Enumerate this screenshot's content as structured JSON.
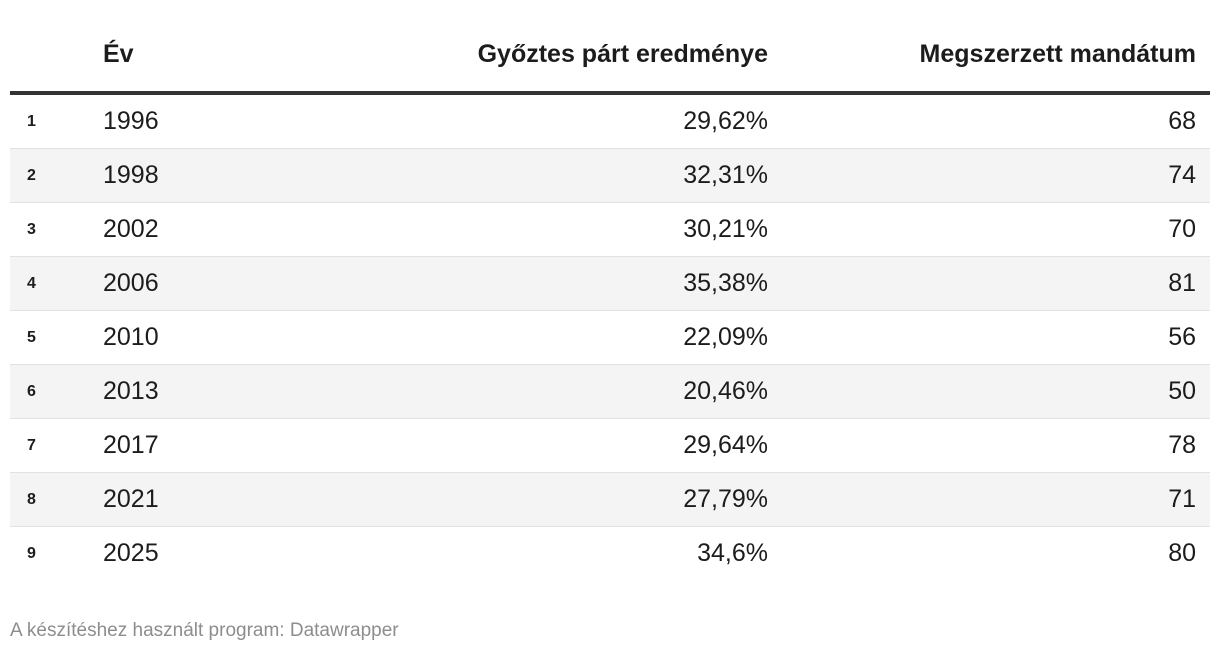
{
  "colors": {
    "text": "#1c1c1c",
    "header_border": "#333333",
    "row_stripe": "#f4f4f4",
    "row_separator": "#e1e1e1",
    "footer_text": "#8d8d8d"
  },
  "table": {
    "columns": [
      {
        "label": "",
        "align": "left"
      },
      {
        "label": "Év",
        "align": "left"
      },
      {
        "label": "Győztes párt eredménye",
        "align": "right"
      },
      {
        "label": "Megszerzett mandátum",
        "align": "right"
      }
    ],
    "rows": [
      {
        "num": "1",
        "year": "1996",
        "result": "29,62%",
        "seats": "68"
      },
      {
        "num": "2",
        "year": "1998",
        "result": "32,31%",
        "seats": "74"
      },
      {
        "num": "3",
        "year": "2002",
        "result": "30,21%",
        "seats": "70"
      },
      {
        "num": "4",
        "year": "2006",
        "result": "35,38%",
        "seats": "81"
      },
      {
        "num": "5",
        "year": "2010",
        "result": "22,09%",
        "seats": "56"
      },
      {
        "num": "6",
        "year": "2013",
        "result": "20,46%",
        "seats": "50"
      },
      {
        "num": "7",
        "year": "2017",
        "result": "29,64%",
        "seats": "78"
      },
      {
        "num": "8",
        "year": "2021",
        "result": "27,79%",
        "seats": "71"
      },
      {
        "num": "9",
        "year": "2025",
        "result": "34,6%",
        "seats": "80"
      }
    ]
  },
  "footer": {
    "attribution": "A készítéshez használt program: Datawrapper"
  },
  "chart_data": {
    "type": "table",
    "title": "",
    "columns": [
      "Év",
      "Győztes párt eredménye",
      "Megszerzett mandátum"
    ],
    "rows": [
      [
        "1996",
        "29,62%",
        68
      ],
      [
        "1998",
        "32,31%",
        74
      ],
      [
        "2002",
        "30,21%",
        70
      ],
      [
        "2006",
        "35,38%",
        81
      ],
      [
        "2010",
        "22,09%",
        56
      ],
      [
        "2013",
        "20,46%",
        50
      ],
      [
        "2017",
        "29,64%",
        78
      ],
      [
        "2021",
        "27,79%",
        71
      ],
      [
        "2025",
        "34,6%",
        80
      ]
    ],
    "layout": {
      "row_numbers_visible": true,
      "zebra_striping": true,
      "numeric_columns_right_aligned": true
    }
  }
}
